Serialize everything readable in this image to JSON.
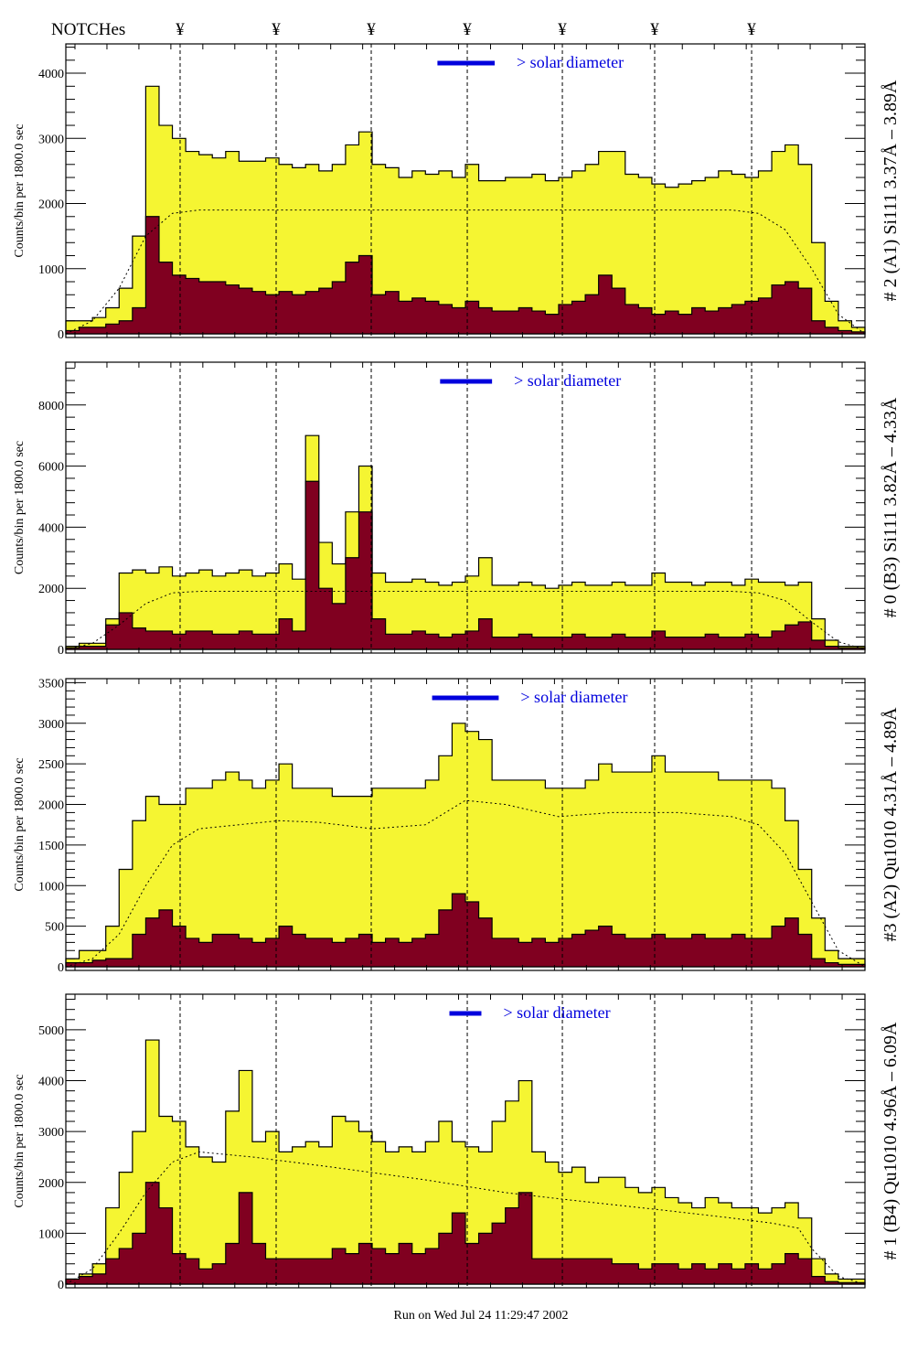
{
  "header": {
    "notch_label": "NOTCHes",
    "notch_symbol": "¥"
  },
  "footer": {
    "run_text": "Run on Wed Jul 24 11:29:47 2002"
  },
  "colors": {
    "total": "#f5f532",
    "subset": "#800020",
    "solar_bar": "#0000dd",
    "solar_text": "#0000dd"
  },
  "chart_data": [
    {
      "type": "bar",
      "title": "# 2 (A1) Si111  3.37Å – 3.89Å",
      "ylabel": "Counts/bin per   1800.0 sec",
      "solar_label": "> solar diameter",
      "ylim": [
        0,
        4450
      ],
      "yticks": [
        0,
        1000,
        2000,
        3000,
        4000
      ],
      "x_range": [
        0,
        60
      ],
      "notches": [
        8.58,
        15.79,
        22.93,
        30.14,
        37.28,
        44.21,
        51.49
      ],
      "solar_bar": [
        27.9,
        32.2
      ],
      "series": [
        {
          "name": "total",
          "values": [
            200,
            200,
            250,
            400,
            700,
            1500,
            3800,
            3200,
            3000,
            2800,
            2750,
            2700,
            2800,
            2650,
            2650,
            2700,
            2600,
            2550,
            2600,
            2500,
            2600,
            2900,
            3100,
            2600,
            2550,
            2400,
            2500,
            2450,
            2500,
            2400,
            2600,
            2350,
            2350,
            2400,
            2400,
            2450,
            2350,
            2400,
            2500,
            2600,
            2800,
            2800,
            2450,
            2400,
            2300,
            2250,
            2300,
            2350,
            2400,
            2500,
            2450,
            2400,
            2500,
            2800,
            2900,
            2600,
            1400,
            500,
            200,
            100
          ]
        },
        {
          "name": "subset",
          "values": [
            50,
            100,
            100,
            150,
            200,
            400,
            1800,
            1100,
            900,
            850,
            800,
            800,
            750,
            700,
            650,
            600,
            650,
            600,
            650,
            700,
            800,
            1100,
            1200,
            600,
            650,
            500,
            550,
            500,
            450,
            400,
            500,
            400,
            350,
            350,
            400,
            350,
            300,
            450,
            500,
            600,
            900,
            700,
            450,
            400,
            300,
            350,
            300,
            400,
            350,
            400,
            450,
            500,
            550,
            750,
            800,
            700,
            200,
            100,
            50,
            30
          ]
        }
      ],
      "expected": {
        "x": [
          0,
          2,
          4,
          6,
          8,
          10,
          50,
          52,
          54,
          56,
          58,
          60
        ],
        "y": [
          0,
          200,
          700,
          1500,
          1850,
          1900,
          1900,
          1850,
          1600,
          1000,
          300,
          0
        ]
      }
    },
    {
      "type": "bar",
      "title": "# 0 (B3) Si111  3.82Å – 4.33Å",
      "ylabel": "Counts/bin per   1800.0 sec",
      "solar_label": "> solar diameter",
      "ylim": [
        0,
        9400
      ],
      "yticks": [
        0,
        2000,
        4000,
        6000,
        8000
      ],
      "x_range": [
        0,
        60
      ],
      "notches": [
        8.58,
        15.79,
        22.93,
        30.14,
        37.28,
        44.21,
        51.49
      ],
      "solar_bar": [
        28.1,
        32.0
      ],
      "series": [
        {
          "name": "total",
          "values": [
            100,
            200,
            200,
            1000,
            2500,
            2600,
            2500,
            2700,
            2400,
            2500,
            2600,
            2400,
            2500,
            2600,
            2400,
            2500,
            2800,
            2300,
            7000,
            3500,
            2800,
            4500,
            6000,
            2500,
            2200,
            2200,
            2300,
            2200,
            2100,
            2200,
            2400,
            3000,
            2100,
            2100,
            2200,
            2100,
            2000,
            2100,
            2200,
            2100,
            2100,
            2200,
            2100,
            2100,
            2500,
            2200,
            2200,
            2100,
            2200,
            2200,
            2100,
            2300,
            2200,
            2200,
            2100,
            2200,
            1000,
            300,
            100,
            100
          ]
        },
        {
          "name": "subset",
          "values": [
            50,
            100,
            100,
            800,
            1200,
            700,
            600,
            600,
            500,
            600,
            600,
            500,
            500,
            600,
            500,
            500,
            1000,
            600,
            5500,
            2000,
            1500,
            3000,
            4500,
            1000,
            500,
            500,
            600,
            500,
            400,
            500,
            600,
            1000,
            400,
            400,
            500,
            400,
            400,
            400,
            500,
            400,
            400,
            500,
            400,
            400,
            600,
            400,
            400,
            400,
            500,
            400,
            400,
            500,
            400,
            600,
            800,
            900,
            300,
            100,
            50,
            50
          ]
        }
      ],
      "expected": {
        "x": [
          0,
          2,
          4,
          6,
          8,
          10,
          50,
          52,
          54,
          56,
          58,
          60
        ],
        "y": [
          0,
          200,
          800,
          1500,
          1850,
          1900,
          1900,
          1850,
          1600,
          900,
          250,
          0
        ]
      }
    },
    {
      "type": "bar",
      "title": "#3 (A2) Qu1010  4.31Å – 4.89Å",
      "ylabel": "Counts/bin per   1800.0 sec",
      "solar_label": "> solar diameter",
      "ylim": [
        0,
        3550
      ],
      "yticks": [
        0,
        500,
        1000,
        1500,
        2000,
        2500,
        3000,
        3500
      ],
      "x_range": [
        0,
        60
      ],
      "notches": [
        8.58,
        15.79,
        22.93,
        30.14,
        37.28,
        44.21,
        51.49
      ],
      "solar_bar": [
        27.5,
        32.5
      ],
      "series": [
        {
          "name": "total",
          "values": [
            100,
            200,
            200,
            500,
            1200,
            1800,
            2100,
            2000,
            2000,
            2200,
            2200,
            2300,
            2400,
            2300,
            2200,
            2300,
            2500,
            2200,
            2200,
            2200,
            2100,
            2100,
            2100,
            2200,
            2200,
            2200,
            2200,
            2300,
            2600,
            3000,
            2900,
            2800,
            2300,
            2300,
            2300,
            2300,
            2200,
            2200,
            2200,
            2300,
            2500,
            2400,
            2400,
            2400,
            2600,
            2400,
            2400,
            2400,
            2400,
            2300,
            2300,
            2300,
            2300,
            2200,
            1800,
            1200,
            600,
            200,
            100,
            100
          ]
        },
        {
          "name": "subset",
          "values": [
            50,
            50,
            80,
            100,
            100,
            400,
            600,
            700,
            500,
            350,
            300,
            400,
            400,
            350,
            300,
            350,
            500,
            400,
            350,
            350,
            300,
            350,
            400,
            300,
            350,
            300,
            350,
            400,
            700,
            900,
            800,
            600,
            350,
            350,
            300,
            350,
            300,
            350,
            400,
            450,
            500,
            400,
            350,
            350,
            400,
            350,
            350,
            400,
            350,
            350,
            400,
            350,
            350,
            500,
            600,
            400,
            100,
            50,
            30,
            30
          ]
        }
      ],
      "expected": {
        "x": [
          0,
          2,
          4,
          6,
          8,
          10,
          16,
          19,
          23,
          27,
          30,
          33,
          37,
          41,
          46,
          50,
          52,
          54,
          56,
          58,
          60
        ],
        "y": [
          0,
          100,
          400,
          1000,
          1500,
          1700,
          1800,
          1780,
          1700,
          1750,
          2050,
          2000,
          1850,
          1900,
          1900,
          1850,
          1750,
          1400,
          800,
          200,
          0
        ]
      }
    },
    {
      "type": "bar",
      "title": "# 1 (B4) Qu1010 4.96Å – 6.09Å",
      "ylabel": "Counts/bin per   1800.0 sec",
      "solar_label": "> solar diameter",
      "ylim": [
        0,
        5700
      ],
      "yticks": [
        0,
        1000,
        2000,
        3000,
        4000,
        5000
      ],
      "x_range": [
        0,
        60
      ],
      "notches": [
        8.58,
        15.79,
        22.93,
        30.14,
        37.28,
        44.21,
        51.49
      ],
      "solar_bar": [
        28.8,
        31.2
      ],
      "series": [
        {
          "name": "total",
          "values": [
            100,
            200,
            400,
            1500,
            2200,
            3000,
            4800,
            3300,
            3200,
            2700,
            2500,
            2400,
            3400,
            4200,
            2800,
            3000,
            2600,
            2700,
            2800,
            2700,
            3300,
            3200,
            3000,
            2800,
            2600,
            2700,
            2600,
            2800,
            3200,
            2800,
            2700,
            2600,
            3200,
            3600,
            4000,
            2600,
            2400,
            2200,
            2300,
            2000,
            2100,
            2100,
            1900,
            1800,
            1900,
            1700,
            1600,
            1500,
            1700,
            1600,
            1500,
            1500,
            1400,
            1500,
            1600,
            1300,
            500,
            200,
            100,
            100
          ]
        },
        {
          "name": "subset",
          "values": [
            100,
            150,
            200,
            500,
            700,
            1000,
            2000,
            1500,
            600,
            500,
            300,
            400,
            800,
            1800,
            800,
            500,
            500,
            500,
            500,
            500,
            700,
            600,
            800,
            700,
            600,
            800,
            600,
            700,
            1000,
            1400,
            800,
            1000,
            1200,
            1500,
            1800,
            500,
            500,
            500,
            500,
            500,
            500,
            400,
            400,
            300,
            400,
            400,
            300,
            400,
            300,
            400,
            300,
            400,
            300,
            400,
            600,
            500,
            150,
            50,
            30,
            30
          ]
        }
      ],
      "expected": {
        "x": [
          0,
          2,
          4,
          6,
          8,
          10,
          14,
          20,
          27,
          33,
          38,
          45,
          50,
          53,
          55,
          56,
          58,
          60
        ],
        "y": [
          0,
          300,
          1000,
          1800,
          2400,
          2600,
          2500,
          2300,
          2050,
          1800,
          1650,
          1450,
          1300,
          1200,
          1100,
          700,
          150,
          0
        ]
      }
    }
  ]
}
